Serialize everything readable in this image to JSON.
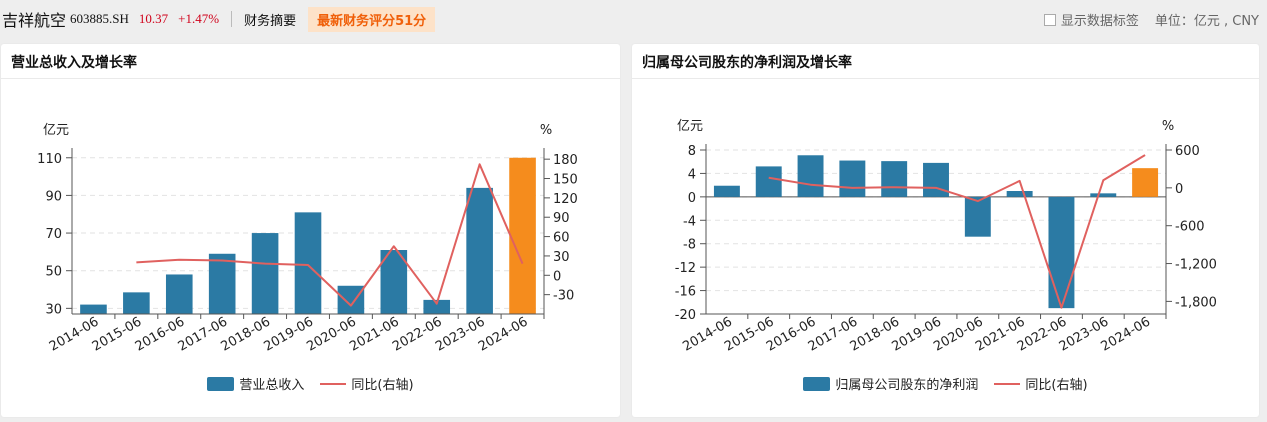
{
  "header": {
    "stock_name": "吉祥航空",
    "stock_code": "603885.SH",
    "price": "10.37",
    "change": "+1.47%",
    "summary_label": "财务摘要",
    "score_badge": "最新财务评分51分",
    "show_labels": "显示数据标签",
    "unit": "单位：亿元 , CNY"
  },
  "colors": {
    "bar": "#2b7aa4",
    "bar_latest": "#f58c1d",
    "line": "#e0615f",
    "grid": "#e2e2e2"
  },
  "chart_data": [
    {
      "type": "bar",
      "title": "营业总收入及增长率",
      "categories": [
        "2014-06",
        "2015-06",
        "2016-06",
        "2017-06",
        "2018-06",
        "2019-06",
        "2020-06",
        "2021-06",
        "2022-06",
        "2023-06",
        "2024-06"
      ],
      "series": [
        {
          "name": "营业总收入",
          "axis": "left",
          "values": [
            32,
            38.5,
            48,
            59,
            70,
            81,
            42,
            61,
            34.5,
            94,
            110
          ]
        },
        {
          "name": "同比(右轴)",
          "axis": "right",
          "type": "line",
          "values": [
            null,
            20,
            24,
            23,
            18,
            16,
            -47,
            45,
            -44,
            172,
            18
          ]
        }
      ],
      "left_axis": {
        "label": "亿元",
        "ticks": [
          30,
          50,
          70,
          90,
          110
        ],
        "ylim": [
          27,
          112
        ]
      },
      "right_axis": {
        "label": "%",
        "ticks": [
          -30,
          0,
          30,
          60,
          90,
          120,
          150,
          180
        ],
        "ylim": [
          -60,
          188
        ]
      },
      "legend": [
        "营业总收入",
        "同比(右轴)"
      ],
      "grid": true,
      "legend_position": "bottom"
    },
    {
      "type": "bar",
      "title": "归属母公司股东的净利润及增长率",
      "categories": [
        "2014-06",
        "2015-06",
        "2016-06",
        "2017-06",
        "2018-06",
        "2019-06",
        "2020-06",
        "2021-06",
        "2022-06",
        "2023-06",
        "2024-06"
      ],
      "series": [
        {
          "name": "归属母公司股东的净利润",
          "axis": "left",
          "values": [
            1.9,
            5.2,
            7.1,
            6.2,
            6.1,
            5.8,
            -6.8,
            1.0,
            -19.0,
            0.6,
            4.9
          ]
        },
        {
          "name": "同比(右轴)",
          "axis": "right",
          "type": "line",
          "values": [
            null,
            160,
            50,
            0,
            10,
            0,
            -210,
            110,
            -1900,
            120,
            520
          ]
        }
      ],
      "left_axis": {
        "label": "亿元",
        "ticks": [
          -20,
          -16,
          -12,
          -8,
          -4,
          0,
          4,
          8
        ],
        "ylim": [
          -20,
          8
        ]
      },
      "right_axis": {
        "label": "%",
        "ticks": [
          -1800,
          -1200,
          -600,
          0,
          600
        ],
        "ylim": [
          -2000,
          600
        ],
        "tick_labels": [
          "-1,800",
          "-1,200",
          "-600",
          "0",
          "600"
        ]
      },
      "legend": [
        "归属母公司股东的净利润",
        "同比(右轴)"
      ],
      "grid": true,
      "legend_position": "bottom"
    }
  ]
}
